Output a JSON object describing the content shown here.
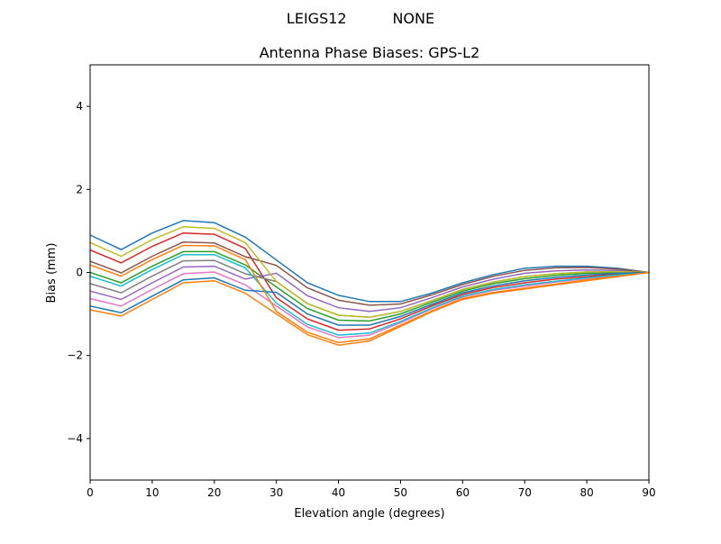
{
  "chart_data": {
    "type": "line",
    "suptitle": "LEIGS12          NONE",
    "title": "Antenna Phase Biases: GPS-L2",
    "xlabel": "Elevation angle (degrees)",
    "ylabel": "Bias (mm)",
    "xlim": [
      0,
      90
    ],
    "ylim": [
      -5,
      5
    ],
    "xticks": [
      0,
      10,
      20,
      30,
      40,
      50,
      60,
      70,
      80,
      90
    ],
    "yticks": [
      -4,
      -2,
      0,
      2,
      4
    ],
    "grid": false,
    "x": [
      0,
      5,
      10,
      15,
      20,
      25,
      30,
      35,
      40,
      45,
      50,
      55,
      60,
      65,
      70,
      75,
      80,
      85,
      90
    ],
    "colors": [
      "#1f77b4",
      "#ff7f0e",
      "#2ca02c",
      "#d62728",
      "#9467bd",
      "#8c564b",
      "#e377c2",
      "#7f7f7f",
      "#bcbd22",
      "#17becf"
    ],
    "series": [
      {
        "values": [
          0.9,
          0.55,
          0.95,
          1.25,
          1.2,
          0.85,
          0.3,
          -0.25,
          -0.55,
          -0.7,
          -0.7,
          -0.5,
          -0.25,
          -0.05,
          0.1,
          0.15,
          0.15,
          0.1,
          0
        ]
      },
      {
        "values": [
          -0.9,
          -1.05,
          -0.65,
          -0.25,
          -0.2,
          -0.5,
          -1.0,
          -1.5,
          -1.75,
          -1.65,
          -1.3,
          -0.95,
          -0.65,
          -0.5,
          -0.4,
          -0.3,
          -0.2,
          -0.1,
          0
        ]
      },
      {
        "values": [
          0,
          -0.25,
          0.15,
          0.5,
          0.5,
          0.18,
          -0.35,
          -0.87,
          -1.15,
          -1.17,
          -1.0,
          -0.72,
          -0.45,
          -0.27,
          -0.15,
          -0.07,
          -0.02,
          0,
          0
        ]
      },
      {
        "values": [
          0.54,
          0.23,
          0.63,
          0.95,
          0.92,
          0.58,
          -0.61,
          -1.12,
          -1.39,
          -1.36,
          -1.12,
          -0.81,
          -0.53,
          -0.36,
          -0.25,
          -0.16,
          -0.1,
          -0.04,
          0
        ]
      },
      {
        "values": [
          -0.45,
          -0.65,
          -0.25,
          0.13,
          0.15,
          -0.16,
          -0.02,
          -0.56,
          -0.85,
          -0.94,
          -0.85,
          -0.61,
          -0.35,
          -0.16,
          -0.02,
          0.04,
          0.06,
          0.05,
          0
        ]
      },
      {
        "values": [
          0.27,
          -0.01,
          0.39,
          0.73,
          0.71,
          0.38,
          0.17,
          -0.37,
          -0.67,
          -0.79,
          -0.76,
          -0.54,
          -0.29,
          -0.09,
          0.05,
          0.11,
          0.12,
          0.08,
          0
        ]
      },
      {
        "values": [
          -0.63,
          -0.81,
          -0.41,
          -0.03,
          0.01,
          -0.3,
          -0.81,
          -1.31,
          -1.57,
          -1.51,
          -1.21,
          -0.88,
          -0.59,
          -0.43,
          -0.33,
          -0.23,
          -0.15,
          -0.07,
          0
        ]
      },
      {
        "values": [
          -0.27,
          -0.49,
          -0.09,
          0.28,
          0.29,
          -0.03,
          -0.22,
          -0.75,
          -1.03,
          -1.08,
          -0.94,
          -0.68,
          -0.41,
          -0.23,
          -0.1,
          -0.03,
          0.01,
          0.02,
          0
        ]
      },
      {
        "values": [
          0.72,
          0.39,
          0.79,
          1.1,
          1.06,
          0.72,
          -0.22,
          -0.75,
          -1.03,
          -1.08,
          -0.94,
          -0.68,
          -0.41,
          -0.23,
          -0.1,
          -0.03,
          0.01,
          0.02,
          0
        ]
      },
      {
        "values": [
          -0.09,
          -0.33,
          0.07,
          0.43,
          0.43,
          0.11,
          -0.74,
          -1.25,
          -1.51,
          -1.46,
          -1.18,
          -0.86,
          -0.57,
          -0.41,
          -0.3,
          -0.21,
          -0.13,
          -0.06,
          0
        ]
      },
      {
        "values": [
          -0.81,
          -0.97,
          -0.57,
          -0.18,
          -0.13,
          -0.43,
          -0.48,
          -1.0,
          -1.27,
          -1.27,
          -1.06,
          -0.77,
          -0.49,
          -0.32,
          -0.2,
          -0.12,
          -0.06,
          -0.02,
          0
        ]
      },
      {
        "values": [
          0.18,
          -0.09,
          0.31,
          0.65,
          0.64,
          0.31,
          -0.94,
          -1.44,
          -1.69,
          -1.6,
          -1.27,
          -0.93,
          -0.63,
          -0.48,
          -0.38,
          -0.28,
          -0.18,
          -0.09,
          0
        ]
      }
    ]
  }
}
